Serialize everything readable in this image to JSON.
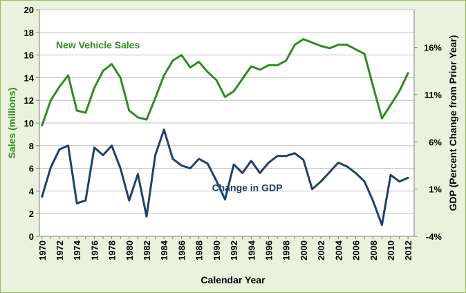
{
  "chart_data": {
    "type": "line",
    "title": "",
    "xlabel": "Calendar Year",
    "ylabel_left": "Sales (millions)",
    "ylabel_right": "GDP (Percent Change from Prior Year)",
    "x": [
      1970,
      1971,
      1972,
      1973,
      1974,
      1975,
      1976,
      1977,
      1978,
      1979,
      1980,
      1981,
      1982,
      1983,
      1984,
      1985,
      1986,
      1987,
      1988,
      1989,
      1990,
      1991,
      1992,
      1993,
      1994,
      1995,
      1996,
      1997,
      1998,
      1999,
      2000,
      2001,
      2002,
      2003,
      2004,
      2005,
      2006,
      2007,
      2008,
      2009,
      2010,
      2011,
      2012
    ],
    "x_tick_labels": [
      "1970",
      "1972",
      "1974",
      "1976",
      "1978",
      "1980",
      "1982",
      "1984",
      "1986",
      "1988",
      "1990",
      "1992",
      "1994",
      "1996",
      "1998",
      "2000",
      "2002",
      "2004",
      "2006",
      "2008",
      "2010",
      "2012"
    ],
    "left_axis": {
      "ylim": [
        0,
        20
      ],
      "ticks": [
        "0",
        "2",
        "4",
        "6",
        "8",
        "10",
        "12",
        "14",
        "16",
        "18",
        "20"
      ]
    },
    "right_axis": {
      "ylim": [
        -4,
        20
      ],
      "ticks": [
        "-4%",
        "1%",
        "6%",
        "11%",
        "16%"
      ],
      "tick_values": [
        -4,
        1,
        6,
        11,
        16
      ]
    },
    "series": [
      {
        "name": "New Vehicle Sales",
        "axis": "left",
        "color": "#2e8b1e",
        "label_year": 1971.6,
        "label_value": 16.6,
        "values": [
          9.8,
          12.0,
          13.2,
          14.2,
          11.1,
          10.9,
          13.1,
          14.6,
          15.2,
          14.0,
          11.1,
          10.5,
          10.3,
          12.2,
          14.2,
          15.5,
          16.0,
          14.9,
          15.4,
          14.5,
          13.8,
          12.3,
          12.8,
          13.9,
          15.0,
          14.7,
          15.1,
          15.1,
          15.5,
          16.9,
          17.4,
          17.1,
          16.8,
          16.6,
          16.9,
          16.9,
          16.5,
          16.1,
          13.2,
          10.4,
          11.6,
          12.8,
          14.4
        ]
      },
      {
        "name": "Change in GDP",
        "axis": "right",
        "color": "#1f3f6e",
        "label_year": 1989.5,
        "label_value": 0.8,
        "values": [
          0.2,
          3.3,
          5.2,
          5.6,
          -0.5,
          -0.2,
          5.4,
          4.6,
          5.6,
          3.2,
          -0.2,
          2.6,
          -1.9,
          4.6,
          7.3,
          4.2,
          3.5,
          3.2,
          4.2,
          3.7,
          1.9,
          -0.1,
          3.6,
          2.7,
          4.0,
          2.7,
          3.8,
          4.5,
          4.5,
          4.8,
          4.1,
          1.0,
          1.8,
          2.8,
          3.8,
          3.4,
          2.7,
          1.8,
          -0.3,
          -2.8,
          2.5,
          1.8,
          2.2
        ]
      }
    ]
  }
}
